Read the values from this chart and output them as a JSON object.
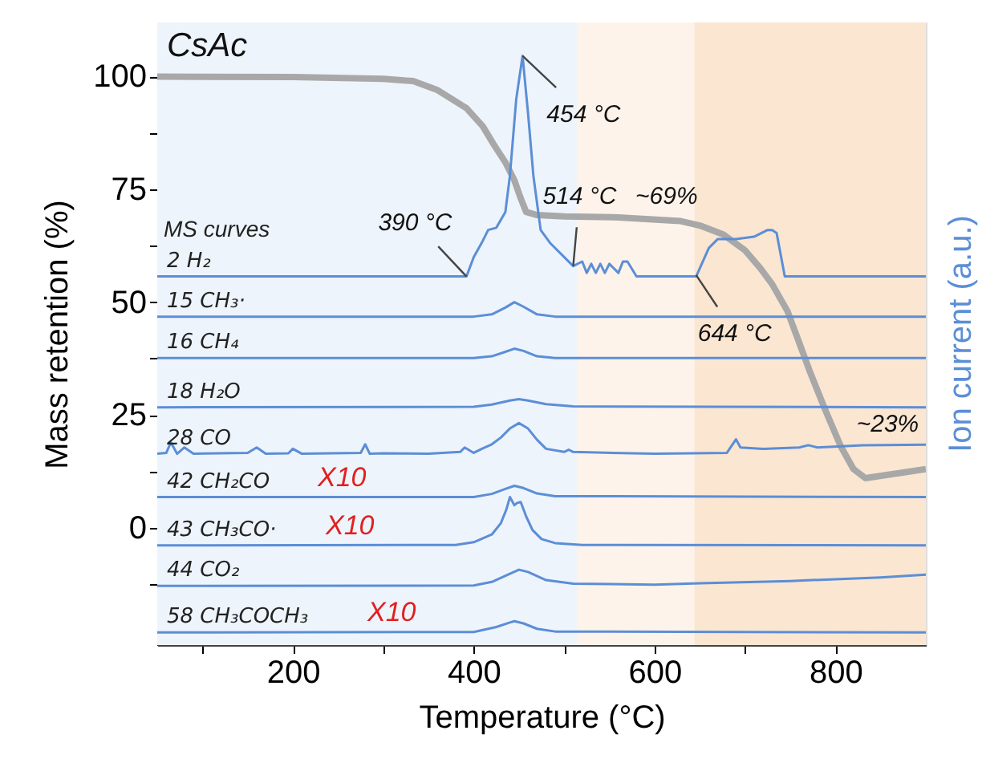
{
  "chart_data": {
    "type": "line",
    "title": "CsAc",
    "xlabel": "Temperature (°C)",
    "ylabel": "Mass retention (%)",
    "y2label": "Ion current (a.u.)",
    "xlim": [
      50,
      900
    ],
    "xticks": [
      {
        "value": 100,
        "label": null
      },
      200,
      {
        "value": 300,
        "label": null
      },
      400,
      {
        "value": 500,
        "label": null
      },
      600,
      {
        "value": 700,
        "label": null
      },
      800
    ],
    "ylim": [
      -26,
      112
    ],
    "yticks": [
      {
        "value": -12.5,
        "label": null
      },
      0,
      {
        "value": 12.5,
        "label": null
      },
      25,
      {
        "value": 37.5,
        "label": null
      },
      50,
      {
        "value": 62.5,
        "label": null
      },
      75,
      {
        "value": 87.5,
        "label": null
      },
      100
    ],
    "grid": false,
    "bands": [
      {
        "axis": "x",
        "from": 50,
        "to": 514,
        "color": "#eef4fb"
      },
      {
        "axis": "x",
        "from": 514,
        "to": 644,
        "color": "#fdf3ea"
      },
      {
        "axis": "x",
        "from": 644,
        "to": 900,
        "color": "#fbe6d2"
      }
    ],
    "series": [
      {
        "color": "#a8a8a8",
        "x": [
          50,
          200,
          300,
          333,
          360,
          392,
          410,
          422,
          435,
          445,
          452,
          458,
          470,
          500,
          560,
          628,
          650,
          676,
          700,
          717,
          730,
          747,
          760,
          771,
          789,
          806,
          820,
          833,
          900
        ],
        "values": [
          100,
          99.9,
          99.5,
          99,
          97,
          93,
          89,
          85,
          81,
          77,
          73,
          70,
          69.3,
          69,
          68.8,
          68,
          67,
          65,
          61.5,
          57.5,
          54,
          48,
          41,
          35,
          26,
          18,
          13,
          11,
          13
        ]
      },
      {
        "name": "2 H₂",
        "color": "#5b8ed6",
        "x": [
          50,
          380,
          392,
          400,
          410,
          416,
          425,
          435,
          440,
          447,
          454,
          460,
          466,
          474,
          485,
          500,
          510,
          520,
          525,
          530,
          535,
          540,
          545,
          550,
          560,
          565,
          570,
          580,
          646,
          660,
          670,
          690,
          710,
          725,
          730,
          735,
          740,
          744,
          900
        ],
        "values": [
          55.7,
          55.7,
          55.7,
          60,
          63.6,
          66,
          66.5,
          70,
          78,
          95,
          104.6,
          92,
          78,
          66,
          63,
          60,
          58,
          59,
          56.5,
          58.5,
          56.5,
          58.5,
          56.5,
          58.5,
          56.5,
          59,
          59,
          55.7,
          55.7,
          62,
          64,
          64,
          64.5,
          66,
          66,
          65.3,
          60,
          55.7,
          55.7
        ]
      },
      {
        "name": "15 CH₃·",
        "color": "#5b8ed6",
        "x": [
          50,
          400,
          420,
          435,
          445,
          455,
          470,
          490,
          900
        ],
        "values": [
          46.8,
          46.8,
          47.3,
          48.8,
          50,
          49,
          47.3,
          46.8,
          46.8
        ]
      },
      {
        "name": "16 CH₄",
        "color": "#5b8ed6",
        "x": [
          50,
          400,
          420,
          435,
          445,
          455,
          470,
          490,
          900
        ],
        "values": [
          37.6,
          37.6,
          38,
          39,
          39.7,
          39.2,
          38,
          37.6,
          37.6
        ]
      },
      {
        "name": "18 H₂O",
        "color": "#5b8ed6",
        "x": [
          50,
          400,
          420,
          440,
          450,
          460,
          480,
          510,
          900
        ],
        "values": [
          26.7,
          26.8,
          27.3,
          28.2,
          28.5,
          28.2,
          27.4,
          26.9,
          26.7
        ]
      },
      {
        "name": "28 CO",
        "color": "#5b8ed6",
        "x": [
          50,
          60,
          65,
          72,
          80,
          90,
          150,
          160,
          170,
          195,
          200,
          210,
          275,
          280,
          285,
          300,
          350,
          385,
          390,
          400,
          410,
          420,
          430,
          440,
          450,
          460,
          470,
          480,
          500,
          505,
          510,
          600,
          680,
          690,
          695,
          720,
          760,
          770,
          780,
          830,
          900
        ],
        "values": [
          16.4,
          16.6,
          18.9,
          16.4,
          17.8,
          16.4,
          16.6,
          17.8,
          16.4,
          16.5,
          17.5,
          16.4,
          16.6,
          18.5,
          16.4,
          16.5,
          16.4,
          16.8,
          17.8,
          16.6,
          17.6,
          18.5,
          20,
          22,
          23.2,
          22,
          19.5,
          17.5,
          16.8,
          17.3,
          16.8,
          16.4,
          16.6,
          19.6,
          17.8,
          17.5,
          17.8,
          18.3,
          17.8,
          18.3,
          18.4
        ]
      },
      {
        "name": "42 CH₂CO",
        "color": "#5b8ed6",
        "x": [
          50,
          400,
          420,
          435,
          445,
          455,
          470,
          490,
          900
        ],
        "values": [
          6.8,
          6.8,
          7.5,
          8.6,
          9.3,
          8.8,
          7.6,
          7.0,
          6.8
        ]
      },
      {
        "name": "43 CH₃CO·",
        "color": "#5b8ed6",
        "x": [
          50,
          380,
          400,
          420,
          430,
          436,
          440,
          445,
          448,
          452,
          458,
          465,
          475,
          490,
          520,
          900
        ],
        "values": [
          -3.9,
          -3.8,
          -3.2,
          -1.5,
          1,
          4,
          6.8,
          5,
          5.5,
          5.7,
          2.5,
          -0.5,
          -2.5,
          -3.4,
          -3.8,
          -3.9
        ]
      },
      {
        "name": "44 CO₂",
        "color": "#5b8ed6",
        "x": [
          50,
          400,
          420,
          440,
          450,
          460,
          480,
          510,
          600,
          650,
          750,
          850,
          900
        ],
        "values": [
          -12.9,
          -12.8,
          -12,
          -10.2,
          -9.3,
          -9.8,
          -11.6,
          -12.4,
          -12.6,
          -12.3,
          -11.8,
          -11,
          -10.4
        ]
      },
      {
        "name": "58 CH₃COCH₃",
        "color": "#5b8ed6",
        "x": [
          50,
          400,
          425,
          440,
          445,
          455,
          470,
          490,
          900
        ],
        "values": [
          -23.2,
          -23.1,
          -22,
          -21,
          -20.7,
          -21.2,
          -22.4,
          -23,
          -23.2
        ]
      }
    ],
    "annotations": [
      {
        "text": "454 °C",
        "x": 454,
        "y": 104.6
      },
      {
        "text": "390 °C",
        "x": 392,
        "y": 55.7
      },
      {
        "text": "514 °C",
        "x": 510,
        "y": 58
      },
      {
        "text": "~69%",
        "x": 560,
        "y": 69
      },
      {
        "text": "644 °C",
        "x": 646,
        "y": 56
      },
      {
        "text": "~23%",
        "x": 833,
        "y": 11
      },
      "MS curves",
      "X10",
      "X10",
      "X10"
    ]
  }
}
